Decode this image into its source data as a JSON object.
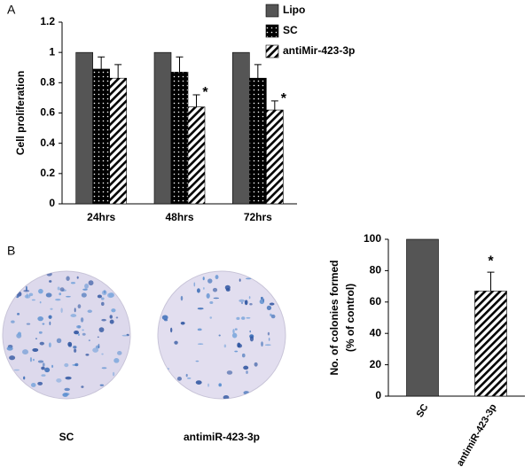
{
  "panels": [
    "A",
    "B"
  ],
  "plates": [
    {
      "label": "SC"
    },
    {
      "label": "antimiR-423-3p"
    }
  ],
  "chart_data": [
    {
      "type": "bar",
      "ylabel": "Cell proliferation",
      "categories": [
        "24hrs",
        "48hrs",
        "72hrs"
      ],
      "series": [
        {
          "name": "Lipo",
          "color": "#555555",
          "pattern": "solid",
          "values": [
            1,
            1,
            1
          ]
        },
        {
          "name": "SC",
          "color": "#000000",
          "pattern": "dots",
          "values": [
            0.89,
            0.87,
            0.83
          ],
          "errors": [
            0.08,
            0.1,
            0.09
          ]
        },
        {
          "name": "antiMir-423-3p",
          "color": "#000000",
          "pattern": "stripes",
          "values": [
            0.83,
            0.64,
            0.62
          ],
          "errors": [
            0.09,
            0.08,
            0.06
          ]
        }
      ],
      "ylim": [
        0,
        1.2
      ],
      "yticks": [
        0,
        0.2,
        0.4,
        0.6,
        0.8,
        1,
        1.2
      ],
      "legend": "top-right",
      "annotations": [
        {
          "text": "*",
          "category": 1,
          "series": 2
        },
        {
          "text": "*",
          "category": 2,
          "series": 2
        }
      ]
    },
    {
      "type": "bar",
      "ylabel": [
        "No. of colonies formed",
        "(% of control)"
      ],
      "categories": [
        "SC",
        "antimiR-423-3p"
      ],
      "series": [
        {
          "colors": [
            "#555555",
            "#000000"
          ],
          "patterns": [
            "solid",
            "stripes"
          ],
          "values": [
            100,
            67
          ],
          "errors": [
            null,
            12
          ]
        }
      ],
      "ylim": [
        0,
        100
      ],
      "yticks": [
        0,
        20,
        40,
        60,
        80,
        100
      ],
      "annotations": [
        {
          "text": "*",
          "category": 1,
          "series": 0
        }
      ]
    }
  ]
}
